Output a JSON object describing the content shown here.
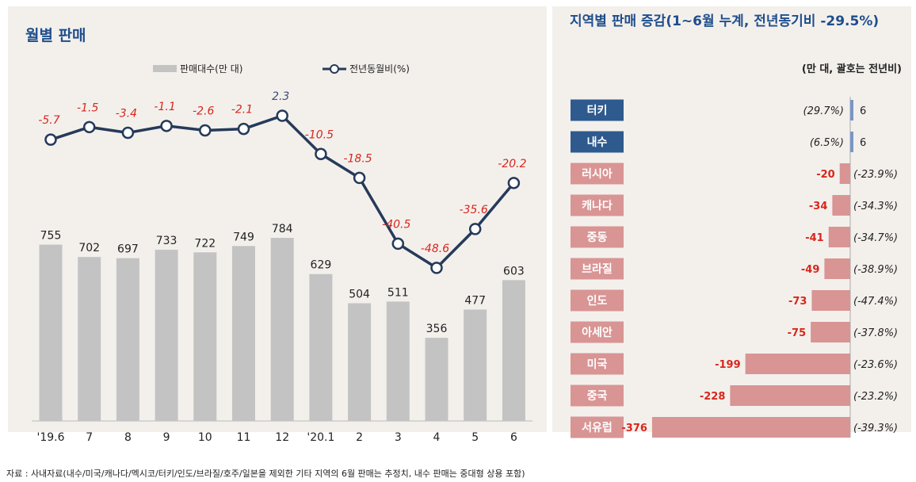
{
  "left": {
    "title": "월별 판매"
  },
  "right": {
    "title": "지역별 판매 증감(1~6월 누계, 전년동기비 -29.5%)",
    "unit_note": "(만 대,  괄호는 전년비)"
  },
  "source": "자료 : 사내자료(내수/미국/캐나다/멕시코/터키/인도/브라질/호주/일본을 제외한 기타 지역의 6월 판매는 추정치, 내수 판매는 중대형 상용 포함)",
  "chart_data": [
    {
      "type": "bar+line",
      "categories": [
        "'19.6",
        "7",
        "8",
        "9",
        "10",
        "11",
        "12",
        "'20.1",
        "2",
        "3",
        "4",
        "5",
        "6"
      ],
      "series": [
        {
          "name": "판매대수(만 대)",
          "type": "bar",
          "color": "#c3c3c3",
          "values": [
            755,
            702,
            697,
            733,
            722,
            749,
            784,
            629,
            504,
            511,
            356,
            477,
            603
          ]
        },
        {
          "name": "전년동월비(%)",
          "type": "line",
          "color": "#263a5a",
          "values": [
            -5.7,
            -1.5,
            -3.4,
            -1.1,
            -2.6,
            -2.1,
            2.3,
            -10.5,
            -18.5,
            -40.5,
            -48.6,
            -35.6,
            -20.2
          ],
          "labels": [
            "-5.7",
            "-1.5",
            "-3.4",
            "-1.1",
            "-2.6",
            "-2.1",
            "2.3",
            "-10.5",
            "-18.5",
            "-40.5",
            "-48.6",
            "-35.6",
            "-20.2"
          ]
        }
      ],
      "legend": "top-center",
      "grid": false,
      "positive_label_color": "#3a4f75",
      "negative_label_color": "#d9261c"
    },
    {
      "type": "bar",
      "orientation": "horizontal",
      "categories": [
        "터키",
        "내수",
        "러시아",
        "캐나다",
        "중동",
        "브라질",
        "인도",
        "아세안",
        "미국",
        "중국",
        "서유럽"
      ],
      "values": [
        6,
        6,
        -20,
        -34,
        -41,
        -49,
        -73,
        -75,
        -199,
        -228,
        -376
      ],
      "value_labels": [
        "6",
        "6",
        "-20",
        "-34",
        "-41",
        "-49",
        "-73",
        "-75",
        "-199",
        "-228",
        "-376"
      ],
      "pct_labels": [
        "(29.7%)",
        "(6.5%)",
        "(-23.9%)",
        "(-34.3%)",
        "(-34.7%)",
        "(-38.9%)",
        "(-47.4%)",
        "(-37.8%)",
        "(-23.6%)",
        "(-23.2%)",
        "(-39.3%)"
      ],
      "positive_color": "#2e5a8e",
      "negative_color": "#d99494"
    }
  ]
}
